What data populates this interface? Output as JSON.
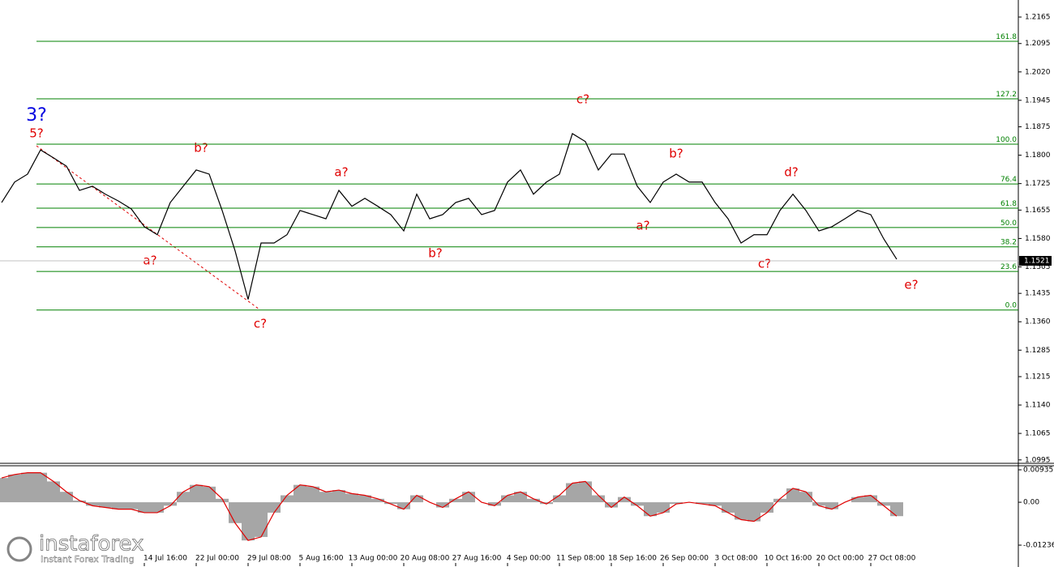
{
  "chart_data": [
    {
      "type": "line",
      "categories": [
        null,
        null,
        null,
        null,
        null,
        null,
        null,
        null,
        null,
        null,
        null,
        "14 Jul 16:00",
        null,
        null,
        null,
        "22 Jul 00:00",
        null,
        null,
        null,
        "29 Jul 08:00",
        null,
        null,
        null,
        "5 Aug 16:00",
        null,
        null,
        null,
        "13 Aug 00:00",
        null,
        null,
        null,
        "20 Aug 08:00",
        null,
        null,
        null,
        "27 Aug 16:00",
        null,
        null,
        null,
        "4 Sep 00:00",
        null,
        null,
        null,
        "11 Sep 08:00",
        null,
        null,
        null,
        "18 Sep 16:00",
        null,
        null,
        null,
        "26 Sep 00:00",
        null,
        null,
        null,
        "3 Oct 08:00",
        null,
        null,
        null,
        "10 Oct 16:00",
        null,
        null,
        null,
        "20 Oct 00:00",
        null,
        null,
        null,
        "27 Oct 08:00",
        null,
        null
      ],
      "series": [
        {
          "color": "#000000",
          "values": [
            1.1675,
            1.1729,
            1.175,
            1.1814,
            1.1793,
            1.1771,
            1.1707,
            1.1718,
            1.1697,
            1.1679,
            1.1658,
            1.1611,
            1.159,
            1.1675,
            1.1718,
            1.1761,
            1.175,
            1.1654,
            1.1547,
            1.1419,
            1.1568,
            1.1568,
            1.159,
            1.1654,
            1.1643,
            1.1632,
            1.1707,
            1.1665,
            1.1686,
            1.1665,
            1.1643,
            1.16,
            1.1697,
            1.1632,
            1.1643,
            1.1675,
            1.1686,
            1.1643,
            1.1654,
            1.1729,
            1.1761,
            1.1697,
            1.1729,
            1.175,
            1.1857,
            1.1836,
            1.1761,
            1.1803,
            1.1803,
            1.1718,
            1.1675,
            1.1729,
            1.175,
            1.1729,
            1.1729,
            1.1675,
            1.1632,
            1.1568,
            1.159,
            1.159,
            1.1654,
            1.1697,
            1.1654,
            1.16,
            1.1611,
            1.1632,
            1.1654,
            1.1643,
            1.1579,
            1.1525
          ]
        }
      ],
      "ylim": [
        1.0986,
        1.221
      ],
      "yticks": [
        1.2165,
        1.2095,
        {
          "value": 1.202,
          "label": "1.2020"
        },
        1.1945,
        1.1875,
        {
          "value": 1.18,
          "label": "1.1800"
        },
        1.1725,
        1.1655,
        {
          "value": 1.158,
          "label": "1.1580"
        },
        1.1505,
        1.1435,
        {
          "value": 1.136,
          "label": "1.1360"
        },
        1.1285,
        1.1215,
        {
          "value": 1.114,
          "label": "1.1140"
        },
        1.1065,
        1.0995
      ],
      "fib_levels": [
        {
          "label": "161.8",
          "price": 1.2101
        },
        {
          "label": "127.2",
          "price": 1.1949
        },
        {
          "label": "100.0",
          "price": 1.1829
        },
        {
          "label": "76.4",
          "price": 1.1724
        },
        {
          "label": "61.8",
          "price": 1.166
        },
        {
          "label": "50.0",
          "price": 1.1609
        },
        {
          "label": "38.2",
          "price": 1.1558
        },
        {
          "label": "23.6",
          "price": 1.1493
        },
        {
          "label": "0.0",
          "price": 1.1391
        }
      ],
      "fib_color": "#008000",
      "current_price": 1.1521,
      "wave_labels": [
        "3?",
        "5?",
        "b?",
        "a?",
        "c?",
        "a?",
        "b?",
        "c?",
        "a?",
        "b?",
        "d?",
        "c?",
        "e?"
      ]
    },
    {
      "type": "bar",
      "values": [
        0.007,
        0.008,
        0.0085,
        0.0085,
        0.006,
        0.003,
        0.0005,
        -0.001,
        -0.0015,
        -0.002,
        -0.002,
        -0.003,
        -0.003,
        -0.001,
        0.003,
        0.005,
        0.0045,
        0.001,
        -0.006,
        -0.011,
        -0.01,
        -0.003,
        0.002,
        0.005,
        0.0045,
        0.003,
        0.0035,
        0.0025,
        0.002,
        0.001,
        -0.0005,
        -0.002,
        0.002,
        0,
        -0.0015,
        0.001,
        0.003,
        0,
        -0.001,
        0.002,
        0.003,
        0.001,
        -0.0005,
        0.002,
        0.0055,
        0.006,
        0.002,
        -0.0015,
        0.0015,
        -0.001,
        -0.004,
        -0.003,
        -0.0005,
        0,
        -0.0005,
        -0.001,
        -0.003,
        -0.005,
        -0.0055,
        -0.003,
        0.001,
        0.004,
        0.003,
        -0.001,
        -0.002,
        0,
        0.0015,
        0.002,
        -0.001,
        -0.004
      ],
      "color": "#a6a6a6",
      "line_color": "#e00000",
      "ylim": [
        -0.01749,
        0.01052
      ],
      "yticks": [
        0.00935,
        {
          "value": 0,
          "label": "0.00"
        },
        -0.01236
      ]
    }
  ],
  "watermark": {
    "brand": "instaforex",
    "tagline": "Instant Forex Trading"
  }
}
